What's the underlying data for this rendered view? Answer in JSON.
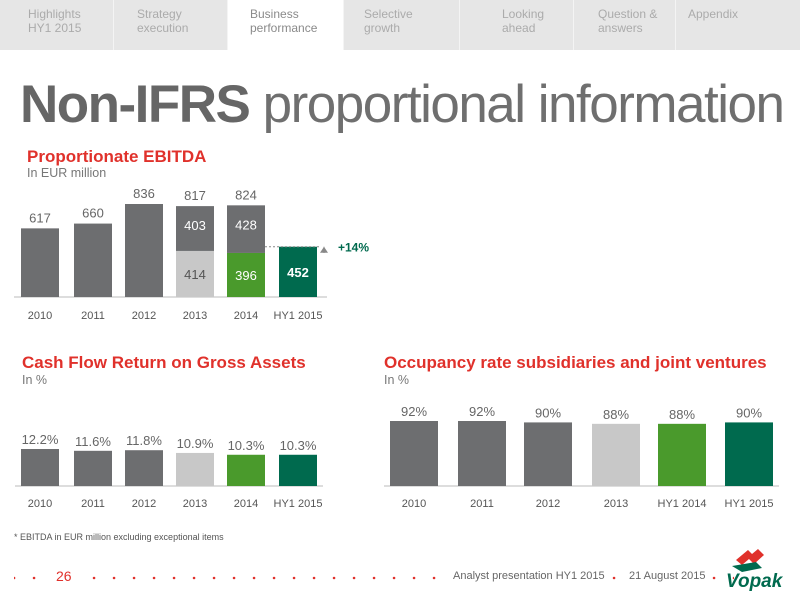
{
  "nav": {
    "tabs": [
      {
        "label": "Highlights\nHY1 2015",
        "active": false
      },
      {
        "label": "Strategy\nexecution",
        "active": false
      },
      {
        "label": "Business\nperformance",
        "active": true
      },
      {
        "label": "Selective\ngrowth",
        "active": false
      },
      {
        "label": "Looking\nahead",
        "active": false
      },
      {
        "label": "Question &\nanswers",
        "active": false
      },
      {
        "label": "Appendix",
        "active": false
      }
    ]
  },
  "title": {
    "bold": "Non-IFRS",
    "light": "proportional information"
  },
  "colors": {
    "accent_red": "#e0312b",
    "bar_grey": "#6d6e70",
    "bar_light": "#c8c8c8",
    "bar_green": "#4a9a2c",
    "bar_dark_green": "#006a4e"
  },
  "chart_data": [
    {
      "id": "ebitda",
      "type": "bar",
      "title": "Proportionate EBITDA",
      "subtitle": "In EUR million",
      "categories": [
        "2010",
        "2011",
        "2012",
        "2013",
        "2014",
        "HY1 2015"
      ],
      "totals": [
        "617",
        "660",
        "836",
        "817",
        "824",
        ""
      ],
      "values": [
        617,
        660,
        836,
        817,
        824,
        452
      ],
      "series": [
        {
          "values": [
            617,
            660,
            836,
            403,
            428,
            null
          ],
          "labels": [
            "",
            "",
            "",
            "403",
            "428",
            ""
          ]
        },
        {
          "values": [
            null,
            null,
            null,
            414,
            396,
            452
          ],
          "labels": [
            "",
            "",
            "",
            "414",
            "396",
            "452"
          ]
        }
      ],
      "annotation": "+14%",
      "ylim": [
        0,
        836
      ]
    },
    {
      "id": "cfrogA",
      "type": "bar",
      "title": "Cash Flow Return on Gross Assets",
      "subtitle": "In %",
      "categories": [
        "2010",
        "2011",
        "2012",
        "2013",
        "2014",
        "HY1 2015"
      ],
      "values": [
        12.2,
        11.6,
        11.8,
        10.9,
        10.3,
        10.3
      ],
      "labels": [
        "12.2%",
        "11.6%",
        "11.8%",
        "10.9%",
        "10.3%",
        "10.3%"
      ],
      "ylim": [
        0,
        12.2
      ]
    },
    {
      "id": "occupancy",
      "type": "bar",
      "title": "Occupancy rate subsidiaries and joint ventures",
      "subtitle": "In %",
      "categories": [
        "2010",
        "2011",
        "2012",
        "2013",
        "HY1 2014",
        "HY1 2015"
      ],
      "values": [
        92,
        92,
        90,
        88,
        88,
        90
      ],
      "labels": [
        "92%",
        "92%",
        "90%",
        "88%",
        "88%",
        "90%"
      ],
      "ylim": [
        0,
        92
      ]
    }
  ],
  "footnote": "* EBITDA in EUR million excluding exceptional items",
  "footer": {
    "page_number": "26",
    "presentation": "Analyst presentation HY1 2015",
    "date": "21 August 2015",
    "logo_text": "Vopak"
  }
}
